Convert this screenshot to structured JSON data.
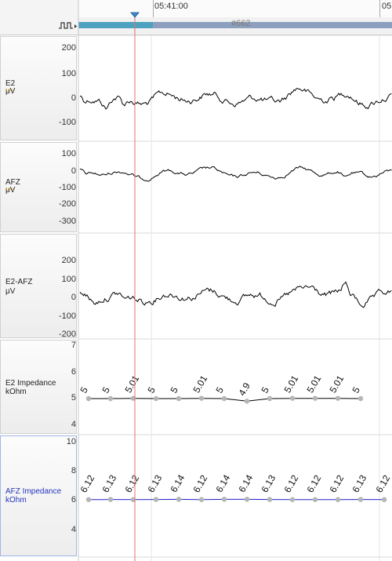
{
  "timeline": {
    "time_1": "05:41:00",
    "time_2": "05",
    "marker": "#662",
    "scroll_glyph": "▸"
  },
  "channels": [
    {
      "name": "E2",
      "unit": "μV",
      "ticks": [
        "200",
        "100",
        "0",
        "-100"
      ]
    },
    {
      "name": "AFZ",
      "unit": "μV",
      "ticks": [
        "100",
        "0",
        "-100",
        "-200",
        "-300"
      ]
    },
    {
      "name": "E2-AFZ",
      "unit": "μV",
      "ticks": [
        "200",
        "100",
        "0",
        "-100",
        "-200"
      ]
    },
    {
      "name": "E2 Impedance",
      "unit": "kOhm",
      "ticks": [
        "7",
        "6",
        "5",
        "4"
      ],
      "values": [
        "5",
        "5",
        "5.01",
        "5",
        "5",
        "5.01",
        "5",
        "4.9",
        "5",
        "5.01",
        "5.01",
        "5.01",
        "5"
      ]
    },
    {
      "name": "AFZ Impedance",
      "unit": "kOhm",
      "ticks": [
        "10",
        "8",
        "6",
        "4"
      ],
      "values": [
        "6.12",
        "6.13",
        "6.12",
        "6.13",
        "6.14",
        "6.12",
        "6.14",
        "6.14",
        "6.13",
        "6.12",
        "6.12",
        "6.12",
        "6.13",
        "6.12"
      ]
    }
  ],
  "colors": {
    "cursor": "#e07070",
    "trace": "#000000",
    "impedance_line_1": "#000000",
    "impedance_line_2": "#2020cc",
    "dot": "#b5b5b5"
  }
}
